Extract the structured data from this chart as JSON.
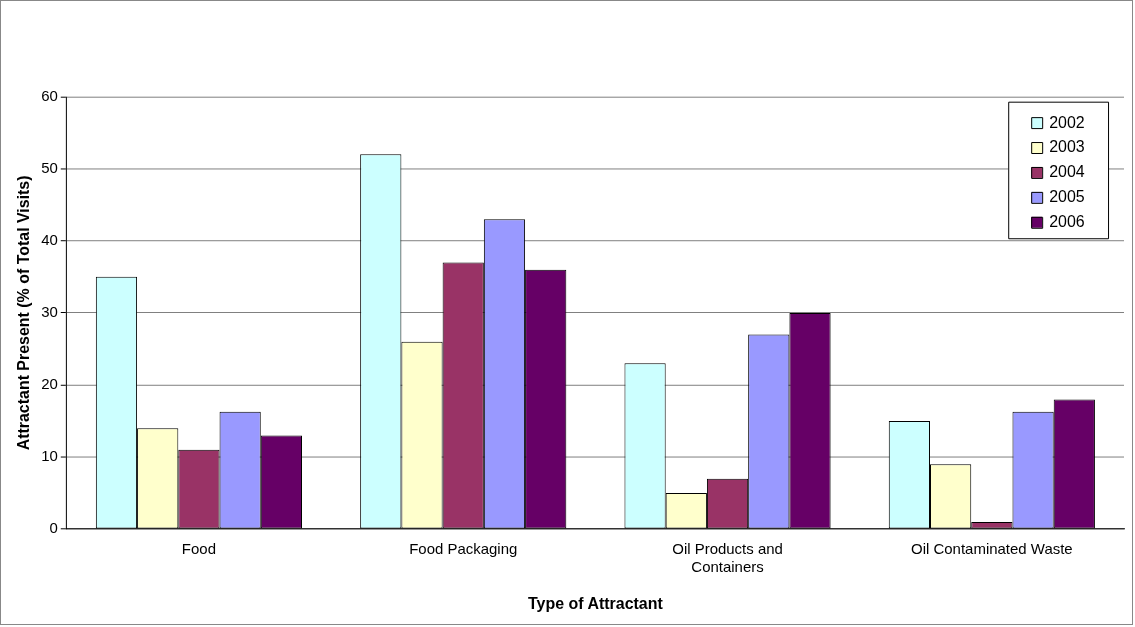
{
  "chart_data": {
    "type": "bar",
    "xlabel": "Type of Attractant",
    "ylabel": "Attractant Present (% of Total Visits)",
    "categories": [
      "Food",
      "Food Packaging",
      "Oil Products and Containers",
      "Oil Contaminated Waste"
    ],
    "series": [
      {
        "name": "2002",
        "color": "#ccffff",
        "values": [
          35,
          52,
          23,
          15
        ]
      },
      {
        "name": "2003",
        "color": "#ffffcc",
        "values": [
          14,
          26,
          5,
          9
        ]
      },
      {
        "name": "2004",
        "color": "#993366",
        "values": [
          11,
          37,
          7,
          1
        ]
      },
      {
        "name": "2005",
        "color": "#9999ff",
        "values": [
          16.3,
          43,
          27,
          16.3
        ]
      },
      {
        "name": "2006",
        "color": "#660066",
        "values": [
          13,
          36,
          30,
          18
        ]
      }
    ],
    "ylim": [
      0,
      60
    ],
    "yticks": [
      0,
      10,
      20,
      30,
      40,
      50,
      60
    ],
    "grid": "y",
    "legend": "top right"
  }
}
